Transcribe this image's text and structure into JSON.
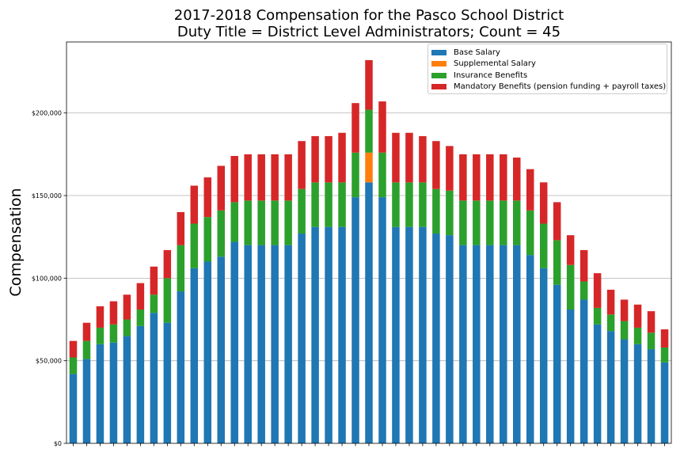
{
  "chart_data": {
    "type": "bar",
    "stacked": true,
    "title_line1": "2017-2018 Compensation for the Pasco School District",
    "title_line2": "Duty Title = District Level Administrators; Count = 45",
    "xlabel": "",
    "ylabel": "Compensation",
    "ylim": [
      0,
      243000
    ],
    "yticks": [
      0,
      50000,
      100000,
      150000,
      200000
    ],
    "ytick_labels": [
      "$0",
      "$50,000",
      "$100,000",
      "$150,000",
      "$200,000"
    ],
    "grid": "horizontal",
    "legend_position": "top-right",
    "series": [
      {
        "name": "Base Salary",
        "color": "#1f77b4",
        "values": [
          42000,
          51000,
          60000,
          61000,
          65000,
          71000,
          79000,
          73000,
          92000,
          106000,
          110000,
          113000,
          122000,
          120000,
          120000,
          120000,
          120000,
          127000,
          131000,
          131000,
          131000,
          149000,
          158000,
          149000,
          131000,
          131000,
          131000,
          127000,
          126000,
          120000,
          120000,
          120000,
          120000,
          120000,
          114000,
          106000,
          96000,
          81000,
          87000,
          72000,
          68000,
          63000,
          60000,
          57000,
          49000
        ]
      },
      {
        "name": "Supplemental Salary",
        "color": "#ff7f0e",
        "values": [
          0,
          0,
          0,
          0,
          0,
          0,
          0,
          0,
          0,
          0,
          0,
          0,
          0,
          0,
          0,
          0,
          0,
          0,
          0,
          0,
          0,
          0,
          18000,
          0,
          0,
          0,
          0,
          0,
          0,
          0,
          0,
          0,
          0,
          0,
          0,
          0,
          0,
          0,
          0,
          0,
          0,
          0,
          0,
          0,
          0
        ]
      },
      {
        "name": "Insurance Benefits",
        "color": "#2ca02c",
        "values": [
          10000,
          11000,
          10000,
          11000,
          10000,
          10000,
          11000,
          27000,
          28000,
          27000,
          27000,
          28000,
          24000,
          27000,
          27000,
          27000,
          27000,
          27000,
          27000,
          27000,
          27000,
          27000,
          26000,
          27000,
          27000,
          27000,
          27000,
          27000,
          27000,
          27000,
          27000,
          27000,
          27000,
          27000,
          27000,
          27000,
          27000,
          27000,
          11000,
          10000,
          10000,
          11000,
          10000,
          10000,
          9000
        ]
      },
      {
        "name": "Mandatory Benefits (pension funding + payroll taxes)",
        "color": "#d62728",
        "values": [
          10000,
          11000,
          13000,
          14000,
          15000,
          16000,
          17000,
          17000,
          20000,
          23000,
          24000,
          27000,
          28000,
          28000,
          28000,
          28000,
          28000,
          29000,
          28000,
          28000,
          30000,
          30000,
          30000,
          31000,
          30000,
          30000,
          28000,
          29000,
          27000,
          28000,
          28000,
          28000,
          28000,
          26000,
          25000,
          25000,
          23000,
          18000,
          19000,
          21000,
          15000,
          13000,
          14000,
          13000,
          11000
        ]
      }
    ]
  }
}
